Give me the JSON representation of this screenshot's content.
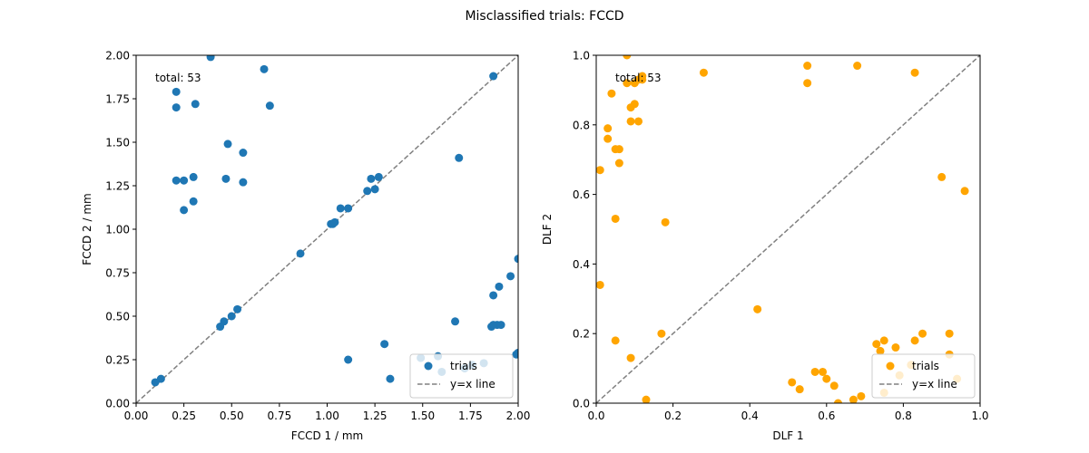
{
  "figure": {
    "suptitle": "Misclassified trials: FCCD"
  },
  "chart_data": [
    {
      "type": "scatter",
      "title": "",
      "xlabel": "FCCD 1 / mm",
      "ylabel": "FCCD 2 / mm",
      "xlim": [
        0,
        2
      ],
      "ylim": [
        0,
        2
      ],
      "xticks": [
        "0.00",
        "0.25",
        "0.50",
        "0.75",
        "1.00",
        "1.25",
        "1.50",
        "1.75",
        "2.00"
      ],
      "yticks": [
        "0.00",
        "0.25",
        "0.50",
        "0.75",
        "1.00",
        "1.25",
        "1.50",
        "1.75",
        "2.00"
      ],
      "annotation": "total: 53",
      "color": "#1f77b4",
      "series": [
        {
          "name": "trials",
          "x": [
            0.39,
            0.67,
            0.21,
            0.21,
            0.31,
            0.7,
            0.48,
            0.56,
            1.69,
            0.21,
            0.25,
            0.3,
            0.47,
            0.56,
            0.3,
            0.25,
            1.87,
            1.23,
            1.27,
            1.21,
            1.25,
            1.07,
            1.11,
            1.02,
            1.03,
            1.04,
            0.86,
            2.0,
            1.96,
            1.9,
            1.87,
            0.53,
            0.5,
            0.46,
            0.44,
            1.67,
            1.89,
            1.86,
            1.87,
            1.3,
            1.11,
            1.49,
            1.58,
            1.6,
            1.72,
            1.76,
            1.82,
            1.99,
            2.0,
            1.33,
            0.13,
            0.1,
            1.91
          ],
          "y": [
            1.99,
            1.92,
            1.79,
            1.7,
            1.72,
            1.71,
            1.49,
            1.44,
            1.41,
            1.28,
            1.28,
            1.3,
            1.29,
            1.27,
            1.16,
            1.11,
            1.88,
            1.29,
            1.3,
            1.22,
            1.23,
            1.12,
            1.12,
            1.03,
            1.03,
            1.04,
            0.86,
            0.83,
            0.73,
            0.67,
            0.62,
            0.54,
            0.5,
            0.47,
            0.44,
            0.47,
            0.45,
            0.44,
            0.45,
            0.34,
            0.25,
            0.26,
            0.27,
            0.18,
            0.2,
            0.22,
            0.23,
            0.28,
            0.29,
            0.14,
            0.14,
            0.12,
            0.45
          ]
        },
        {
          "name": "y=x line",
          "style": "dashed",
          "x": [
            0,
            2
          ],
          "y": [
            0,
            2
          ]
        }
      ],
      "legend": "lower-right"
    },
    {
      "type": "scatter",
      "title": "",
      "xlabel": "DLF 1",
      "ylabel": "DLF 2",
      "xlim": [
        0,
        1
      ],
      "ylim": [
        0,
        1
      ],
      "xticks": [
        "0.0",
        "0.2",
        "0.4",
        "0.6",
        "0.8",
        "1.0"
      ],
      "yticks": [
        "0.0",
        "0.2",
        "0.4",
        "0.6",
        "0.8",
        "1.0"
      ],
      "annotation": "total: 53",
      "color": "#ffa500",
      "series": [
        {
          "name": "trials",
          "x": [
            0.08,
            0.12,
            0.28,
            0.55,
            0.68,
            0.83,
            0.55,
            0.08,
            0.1,
            0.04,
            0.1,
            0.09,
            0.09,
            0.11,
            0.03,
            0.03,
            0.05,
            0.06,
            0.06,
            0.01,
            0.05,
            0.18,
            0.9,
            0.96,
            0.01,
            0.42,
            0.05,
            0.17,
            0.09,
            0.13,
            0.51,
            0.53,
            0.57,
            0.59,
            0.6,
            0.62,
            0.63,
            0.67,
            0.69,
            0.73,
            0.74,
            0.75,
            0.78,
            0.79,
            0.82,
            0.83,
            0.85,
            0.92,
            0.92,
            0.94,
            0.75,
            0.12,
            0.11
          ],
          "y": [
            1.0,
            0.94,
            0.95,
            0.97,
            0.97,
            0.95,
            0.92,
            0.92,
            0.92,
            0.89,
            0.86,
            0.85,
            0.81,
            0.81,
            0.79,
            0.76,
            0.73,
            0.73,
            0.69,
            0.67,
            0.53,
            0.52,
            0.65,
            0.61,
            0.34,
            0.27,
            0.18,
            0.2,
            0.13,
            0.01,
            0.06,
            0.04,
            0.09,
            0.09,
            0.07,
            0.05,
            0.0,
            0.01,
            0.02,
            0.17,
            0.15,
            0.18,
            0.16,
            0.08,
            0.11,
            0.18,
            0.2,
            0.2,
            0.14,
            0.07,
            0.03,
            0.93,
            0.93
          ]
        },
        {
          "name": "y=x line",
          "style": "dashed",
          "x": [
            0,
            1
          ],
          "y": [
            0,
            1
          ]
        }
      ],
      "legend": "lower-right"
    }
  ]
}
